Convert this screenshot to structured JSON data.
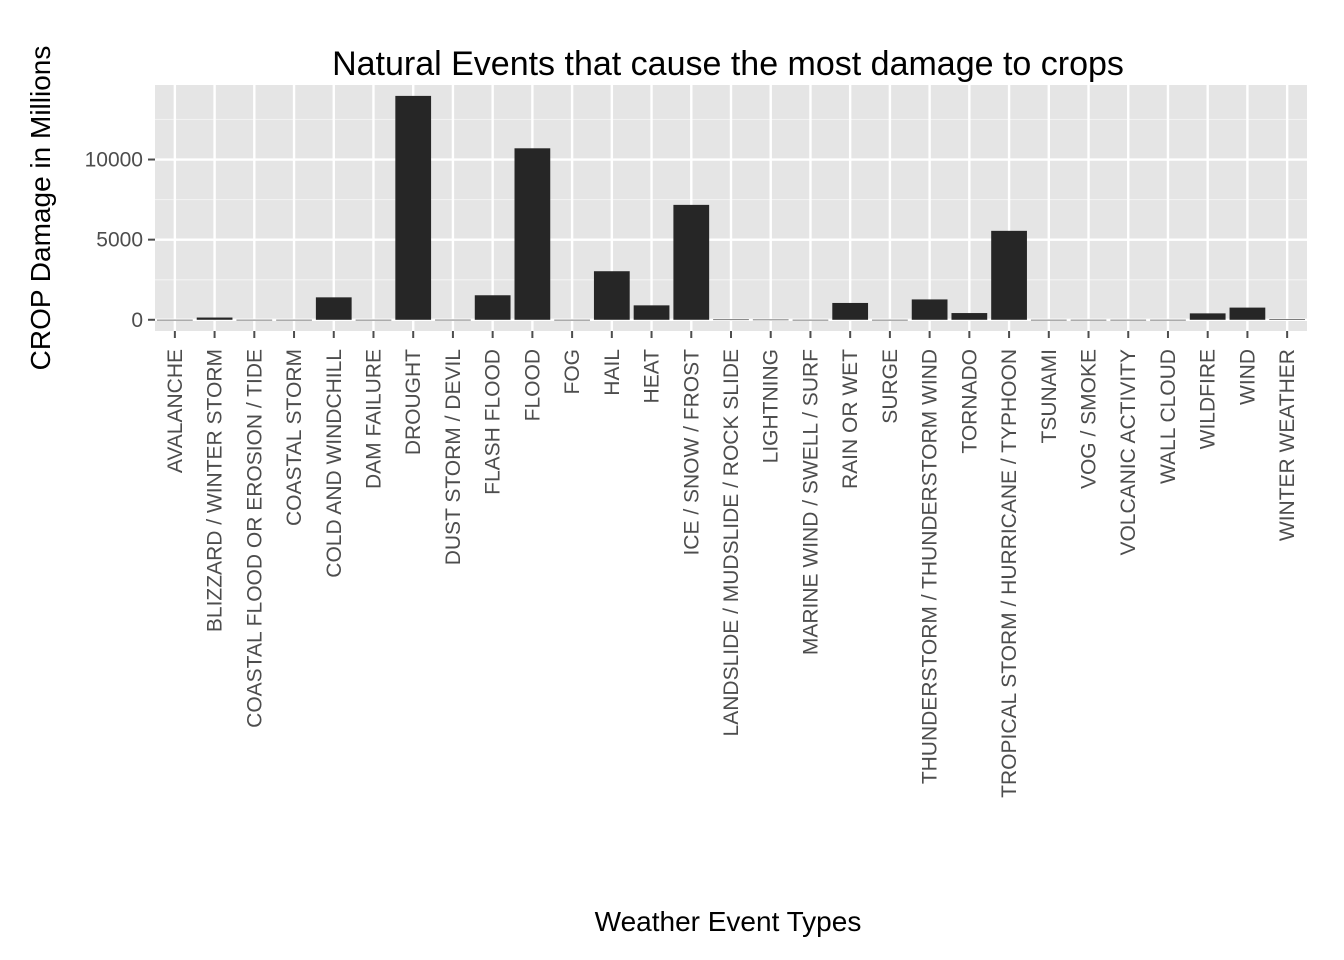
{
  "chart_data": {
    "type": "bar",
    "title": "Natural Events that cause the most damage to crops",
    "xlabel": "Weather Event Types",
    "ylabel": "CROP Damage in Millions",
    "categories": [
      "AVALANCHE",
      "BLIZZARD / WINTER STORM",
      "COASTAL FLOOD OR EROSION / TIDE",
      "COASTAL STORM",
      "COLD AND WINDCHILL",
      "DAM FAILURE",
      "DROUGHT",
      "DUST STORM / DEVIL",
      "FLASH FLOOD",
      "FLOOD",
      "FOG",
      "HAIL",
      "HEAT",
      "ICE / SNOW / FROST",
      "LANDSLIDE / MUDSLIDE / ROCK SLIDE",
      "LIGHTNING",
      "MARINE WIND / SWELL / SURF",
      "RAIN OR WET",
      "SURGE",
      "THUNDERSTORM / THUNDERSTORM WIND",
      "TORNADO",
      "TROPICAL STORM / HURRICANE / TYPHOON",
      "TSUNAMI",
      "VOG / SMOKE",
      "VOLCANIC ACTIVITY",
      "WALL CLOUD",
      "WILDFIRE",
      "WIND",
      "WINTER WEATHER"
    ],
    "values": [
      0,
      140,
      0.4,
      0,
      1400,
      0,
      13970,
      3,
      1530,
      10700,
      0,
      3030,
      900,
      7170,
      20,
      12,
      0,
      1050,
      0,
      1270,
      420,
      5550,
      0,
      0,
      0,
      0,
      400,
      760,
      30
    ],
    "yticks": [
      0,
      5000,
      10000
    ],
    "ylim": [
      -700,
      14650
    ],
    "grid": true,
    "legend": "none",
    "colors": {
      "panel": "#e5e5e5",
      "grid_major": "#ffffff",
      "grid_minor": "#f2f2f2",
      "bar": "#262626",
      "tick": "#4d4d4d"
    }
  }
}
